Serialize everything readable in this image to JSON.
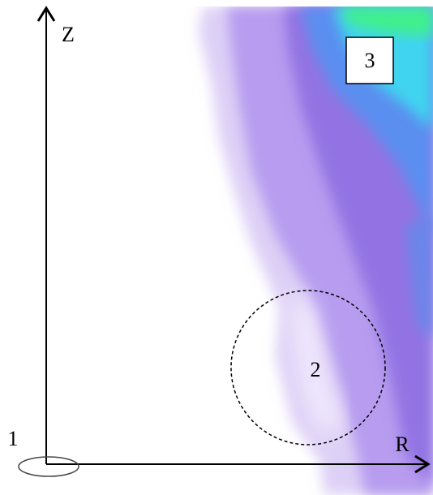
{
  "axes": {
    "z_label": "Z",
    "r_label": "R"
  },
  "markers": {
    "origin": "1",
    "circle": "2",
    "box": "3"
  }
}
